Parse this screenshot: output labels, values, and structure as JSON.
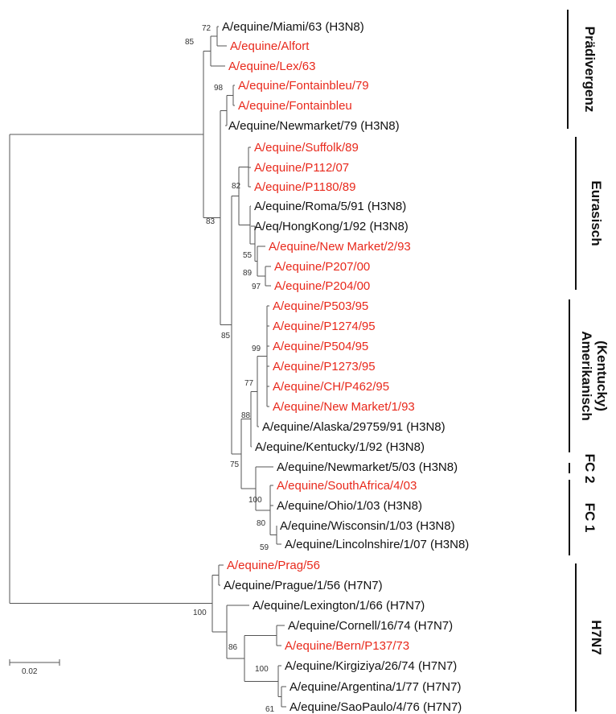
{
  "colors": {
    "highlight": "#e8291c",
    "normal": "#111111",
    "branch": "#555555"
  },
  "tree": {
    "leaves": [
      {
        "label": "A/equine/Miami/63 (H3N8)",
        "highlight": false
      },
      {
        "label": "A/equine/Alfort",
        "highlight": true
      },
      {
        "label": "A/equine/Lex/63",
        "highlight": true
      },
      {
        "label": "A/equine/Fontainbleu/79",
        "highlight": true
      },
      {
        "label": "A/equine/Fontainbleu",
        "highlight": true
      },
      {
        "label": "A/equine/Newmarket/79 (H3N8)",
        "highlight": false
      },
      {
        "label": "A/equine/Suffolk/89",
        "highlight": true
      },
      {
        "label": "A/equine/P112/07",
        "highlight": true
      },
      {
        "label": "A/equine/P1180/89",
        "highlight": true
      },
      {
        "label": "A/equine/Roma/5/91 (H3N8)",
        "highlight": false
      },
      {
        "label": "A/eq/HongKong/1/92 (H3N8)",
        "highlight": false
      },
      {
        "label": "A/equine/New Market/2/93",
        "highlight": true
      },
      {
        "label": "A/equine/P207/00",
        "highlight": true
      },
      {
        "label": "A/equine/P204/00",
        "highlight": true
      },
      {
        "label": "A/equine/P503/95",
        "highlight": true
      },
      {
        "label": "A/equine/P1274/95",
        "highlight": true
      },
      {
        "label": "A/equine/P504/95",
        "highlight": true
      },
      {
        "label": "A/equine/P1273/95",
        "highlight": true
      },
      {
        "label": "A/equine/CH/P462/95",
        "highlight": true
      },
      {
        "label": "A/equine/New Market/1/93",
        "highlight": true
      },
      {
        "label": "A/equine/Alaska/29759/91 (H3N8)",
        "highlight": false
      },
      {
        "label": "A/equine/Kentucky/1/92 (H3N8)",
        "highlight": false
      },
      {
        "label": "A/equine/Newmarket/5/03 (H3N8)",
        "highlight": false
      },
      {
        "label": "A/equine/SouthAfrica/4/03",
        "highlight": true
      },
      {
        "label": "A/equine/Ohio/1/03 (H3N8)",
        "highlight": false
      },
      {
        "label": "A/equine/Wisconsin/1/03 (H3N8)",
        "highlight": false
      },
      {
        "label": "A/equine/Lincolnshire/1/07 (H3N8)",
        "highlight": false
      },
      {
        "label": "A/equine/Prag/56",
        "highlight": true
      },
      {
        "label": "A/equine/Prague/1/56 (H7N7)",
        "highlight": false
      },
      {
        "label": "A/equine/Lexington/1/66 (H7N7)",
        "highlight": false
      },
      {
        "label": "A/equine/Cornell/16/74 (H7N7)",
        "highlight": false
      },
      {
        "label": "A/equine/Bern/P137/73",
        "highlight": true
      },
      {
        "label": "A/equine/Kirgiziya/26/74 (H7N7)",
        "highlight": false
      },
      {
        "label": "A/equine/Argentina/1/77 (H7N7)",
        "highlight": false
      },
      {
        "label": "A/equine/SaoPaulo/4/76 (H7N7)",
        "highlight": false
      }
    ],
    "bootstrap": [
      "72",
      "85",
      "98",
      "83",
      "82",
      "55",
      "89",
      "97",
      "85",
      "99",
      "77",
      "88",
      "75",
      "100",
      "80",
      "59",
      "100",
      "86",
      "100",
      "61"
    ],
    "clades": [
      "Prädivergenz",
      "Eurasisch",
      "Amerikanisch",
      "(Kentucky)",
      "FC 2",
      "FC 1",
      "H7N7"
    ],
    "scale_bar": "0.02"
  }
}
